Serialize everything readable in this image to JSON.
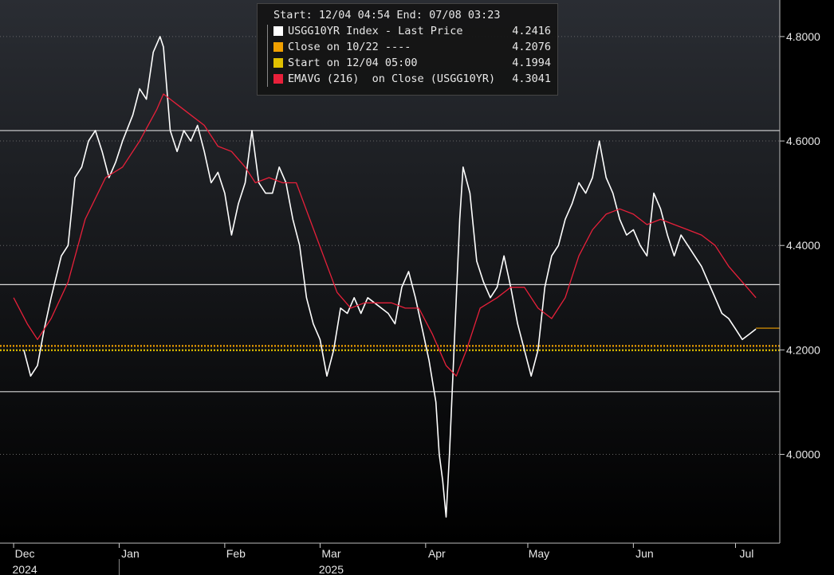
{
  "legend": {
    "header": "Start: 12/04 04:54 End: 07/08 03:23",
    "items": [
      {
        "label": "USGG10YR Index - Last Price",
        "value": "4.2416",
        "color": "#ffffff"
      },
      {
        "label": "Close on 10/22 ----",
        "value": "4.2076",
        "color": "#f0a000"
      },
      {
        "label": "Start on 12/04 05:00",
        "value": "4.1994",
        "color": "#e0c000"
      },
      {
        "label": "EMAVG (216)  on Close (USGG10YR)",
        "value": "4.3041",
        "color": "#e8203a"
      }
    ]
  },
  "chart_data": {
    "type": "line",
    "x_range": [
      "2024-11-27",
      "2025-07-14"
    ],
    "ylim": [
      3.83,
      4.87
    ],
    "y_ticks": [
      4.0,
      4.2,
      4.4,
      4.6,
      4.8
    ],
    "y_tick_labels": [
      "4.0000",
      "4.2000",
      "4.4000",
      "4.6000",
      "4.8000"
    ],
    "x_month_labels": [
      {
        "date": "2024-12-01",
        "label": "Dec"
      },
      {
        "date": "2025-01-01",
        "label": "Jan"
      },
      {
        "date": "2025-02-01",
        "label": "Feb"
      },
      {
        "date": "2025-03-01",
        "label": "Mar"
      },
      {
        "date": "2025-04-01",
        "label": "Apr"
      },
      {
        "date": "2025-05-01",
        "label": "May"
      },
      {
        "date": "2025-06-01",
        "label": "Jun"
      },
      {
        "date": "2025-07-01",
        "label": "Jul"
      }
    ],
    "x_year_labels": [
      {
        "date": "2024-12-01",
        "label": "2024"
      },
      {
        "date": "2025-03-01",
        "label": "2025"
      }
    ],
    "year_divider_date": "2025-01-01",
    "grid": true,
    "horizontal_levels": [
      4.12,
      4.325,
      4.62
    ],
    "reference_lines": [
      {
        "name": "Close on 10/22",
        "y": 4.2076,
        "color": "#f0a000"
      },
      {
        "name": "Start on 12/04 05:00",
        "y": 4.1994,
        "color": "#e0c000"
      }
    ],
    "last_value_marker": {
      "y": 4.2416,
      "color": "#f0a000"
    },
    "series": [
      {
        "name": "USGG10YR Index - Last Price",
        "color": "#ffffff",
        "points": [
          [
            "2024-12-04",
            4.2
          ],
          [
            "2024-12-06",
            4.15
          ],
          [
            "2024-12-08",
            4.17
          ],
          [
            "2024-12-10",
            4.24
          ],
          [
            "2024-12-12",
            4.3
          ],
          [
            "2024-12-15",
            4.38
          ],
          [
            "2024-12-17",
            4.4
          ],
          [
            "2024-12-19",
            4.53
          ],
          [
            "2024-12-21",
            4.55
          ],
          [
            "2024-12-23",
            4.6
          ],
          [
            "2024-12-25",
            4.62
          ],
          [
            "2024-12-27",
            4.58
          ],
          [
            "2024-12-29",
            4.53
          ],
          [
            "2024-12-31",
            4.56
          ],
          [
            "2025-01-02",
            4.6
          ],
          [
            "2025-01-05",
            4.65
          ],
          [
            "2025-01-07",
            4.7
          ],
          [
            "2025-01-09",
            4.68
          ],
          [
            "2025-01-11",
            4.77
          ],
          [
            "2025-01-13",
            4.8
          ],
          [
            "2025-01-14",
            4.78
          ],
          [
            "2025-01-16",
            4.62
          ],
          [
            "2025-01-18",
            4.58
          ],
          [
            "2025-01-20",
            4.62
          ],
          [
            "2025-01-22",
            4.6
          ],
          [
            "2025-01-24",
            4.63
          ],
          [
            "2025-01-26",
            4.58
          ],
          [
            "2025-01-28",
            4.52
          ],
          [
            "2025-01-30",
            4.54
          ],
          [
            "2025-02-01",
            4.5
          ],
          [
            "2025-02-03",
            4.42
          ],
          [
            "2025-02-05",
            4.48
          ],
          [
            "2025-02-07",
            4.52
          ],
          [
            "2025-02-09",
            4.62
          ],
          [
            "2025-02-11",
            4.52
          ],
          [
            "2025-02-13",
            4.5
          ],
          [
            "2025-02-15",
            4.5
          ],
          [
            "2025-02-17",
            4.55
          ],
          [
            "2025-02-19",
            4.52
          ],
          [
            "2025-02-21",
            4.45
          ],
          [
            "2025-02-23",
            4.4
          ],
          [
            "2025-02-25",
            4.3
          ],
          [
            "2025-02-27",
            4.25
          ],
          [
            "2025-03-01",
            4.22
          ],
          [
            "2025-03-03",
            4.15
          ],
          [
            "2025-03-05",
            4.2
          ],
          [
            "2025-03-07",
            4.28
          ],
          [
            "2025-03-09",
            4.27
          ],
          [
            "2025-03-11",
            4.3
          ],
          [
            "2025-03-13",
            4.27
          ],
          [
            "2025-03-15",
            4.3
          ],
          [
            "2025-03-17",
            4.29
          ],
          [
            "2025-03-19",
            4.28
          ],
          [
            "2025-03-21",
            4.27
          ],
          [
            "2025-03-23",
            4.25
          ],
          [
            "2025-03-25",
            4.32
          ],
          [
            "2025-03-27",
            4.35
          ],
          [
            "2025-03-29",
            4.3
          ],
          [
            "2025-03-31",
            4.24
          ],
          [
            "2025-04-02",
            4.18
          ],
          [
            "2025-04-04",
            4.1
          ],
          [
            "2025-04-05",
            4.0
          ],
          [
            "2025-04-06",
            3.95
          ],
          [
            "2025-04-07",
            3.88
          ],
          [
            "2025-04-08",
            4.0
          ],
          [
            "2025-04-09",
            4.15
          ],
          [
            "2025-04-10",
            4.3
          ],
          [
            "2025-04-11",
            4.45
          ],
          [
            "2025-04-12",
            4.55
          ],
          [
            "2025-04-14",
            4.5
          ],
          [
            "2025-04-16",
            4.37
          ],
          [
            "2025-04-18",
            4.33
          ],
          [
            "2025-04-20",
            4.3
          ],
          [
            "2025-04-22",
            4.32
          ],
          [
            "2025-04-24",
            4.38
          ],
          [
            "2025-04-26",
            4.32
          ],
          [
            "2025-04-28",
            4.25
          ],
          [
            "2025-04-30",
            4.2
          ],
          [
            "2025-05-02",
            4.15
          ],
          [
            "2025-05-04",
            4.2
          ],
          [
            "2025-05-06",
            4.32
          ],
          [
            "2025-05-08",
            4.38
          ],
          [
            "2025-05-10",
            4.4
          ],
          [
            "2025-05-12",
            4.45
          ],
          [
            "2025-05-14",
            4.48
          ],
          [
            "2025-05-16",
            4.52
          ],
          [
            "2025-05-18",
            4.5
          ],
          [
            "2025-05-20",
            4.53
          ],
          [
            "2025-05-22",
            4.6
          ],
          [
            "2025-05-24",
            4.53
          ],
          [
            "2025-05-26",
            4.5
          ],
          [
            "2025-05-28",
            4.45
          ],
          [
            "2025-05-30",
            4.42
          ],
          [
            "2025-06-01",
            4.43
          ],
          [
            "2025-06-03",
            4.4
          ],
          [
            "2025-06-05",
            4.38
          ],
          [
            "2025-06-07",
            4.5
          ],
          [
            "2025-06-09",
            4.47
          ],
          [
            "2025-06-11",
            4.42
          ],
          [
            "2025-06-13",
            4.38
          ],
          [
            "2025-06-15",
            4.42
          ],
          [
            "2025-06-17",
            4.4
          ],
          [
            "2025-06-19",
            4.38
          ],
          [
            "2025-06-21",
            4.36
          ],
          [
            "2025-06-23",
            4.33
          ],
          [
            "2025-06-25",
            4.3
          ],
          [
            "2025-06-27",
            4.27
          ],
          [
            "2025-06-29",
            4.26
          ],
          [
            "2025-07-01",
            4.24
          ],
          [
            "2025-07-03",
            4.22
          ],
          [
            "2025-07-05",
            4.23
          ],
          [
            "2025-07-07",
            4.24
          ]
        ]
      },
      {
        "name": "EMAVG (216)  on Close (USGG10YR)",
        "color": "#e8203a",
        "points": [
          [
            "2024-12-01",
            4.3
          ],
          [
            "2024-12-05",
            4.25
          ],
          [
            "2024-12-08",
            4.22
          ],
          [
            "2024-12-12",
            4.26
          ],
          [
            "2024-12-17",
            4.33
          ],
          [
            "2024-12-22",
            4.45
          ],
          [
            "2024-12-28",
            4.53
          ],
          [
            "2025-01-02",
            4.55
          ],
          [
            "2025-01-07",
            4.6
          ],
          [
            "2025-01-12",
            4.66
          ],
          [
            "2025-01-14",
            4.69
          ],
          [
            "2025-01-18",
            4.67
          ],
          [
            "2025-01-22",
            4.65
          ],
          [
            "2025-01-26",
            4.63
          ],
          [
            "2025-01-30",
            4.59
          ],
          [
            "2025-02-03",
            4.58
          ],
          [
            "2025-02-07",
            4.55
          ],
          [
            "2025-02-10",
            4.52
          ],
          [
            "2025-02-14",
            4.53
          ],
          [
            "2025-02-18",
            4.52
          ],
          [
            "2025-02-22",
            4.52
          ],
          [
            "2025-02-26",
            4.45
          ],
          [
            "2025-03-02",
            4.38
          ],
          [
            "2025-03-06",
            4.31
          ],
          [
            "2025-03-10",
            4.28
          ],
          [
            "2025-03-14",
            4.29
          ],
          [
            "2025-03-18",
            4.29
          ],
          [
            "2025-03-22",
            4.29
          ],
          [
            "2025-03-26",
            4.28
          ],
          [
            "2025-03-30",
            4.28
          ],
          [
            "2025-04-03",
            4.23
          ],
          [
            "2025-04-07",
            4.17
          ],
          [
            "2025-04-10",
            4.15
          ],
          [
            "2025-04-13",
            4.2
          ],
          [
            "2025-04-17",
            4.28
          ],
          [
            "2025-04-22",
            4.3
          ],
          [
            "2025-04-26",
            4.32
          ],
          [
            "2025-04-30",
            4.32
          ],
          [
            "2025-05-04",
            4.28
          ],
          [
            "2025-05-08",
            4.26
          ],
          [
            "2025-05-12",
            4.3
          ],
          [
            "2025-05-16",
            4.38
          ],
          [
            "2025-05-20",
            4.43
          ],
          [
            "2025-05-24",
            4.46
          ],
          [
            "2025-05-28",
            4.47
          ],
          [
            "2025-06-01",
            4.46
          ],
          [
            "2025-06-05",
            4.44
          ],
          [
            "2025-06-09",
            4.45
          ],
          [
            "2025-06-13",
            4.44
          ],
          [
            "2025-06-17",
            4.43
          ],
          [
            "2025-06-21",
            4.42
          ],
          [
            "2025-06-25",
            4.4
          ],
          [
            "2025-06-29",
            4.36
          ],
          [
            "2025-07-03",
            4.33
          ],
          [
            "2025-07-07",
            4.3
          ]
        ]
      }
    ]
  }
}
